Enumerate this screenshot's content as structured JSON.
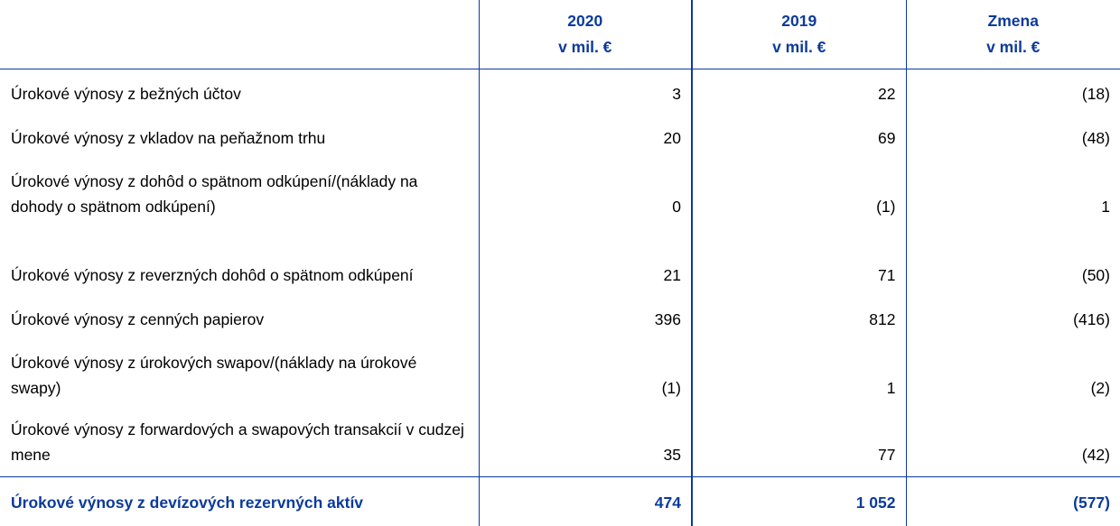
{
  "header": {
    "columns": [
      {
        "line1": "",
        "line2": ""
      },
      {
        "line1": "2020",
        "line2": "v mil. €"
      },
      {
        "line1": "2019",
        "line2": "v mil. €"
      },
      {
        "line1": "Zmena",
        "line2": "v mil. €"
      }
    ]
  },
  "rows": [
    {
      "label": "Úrokové výnosy z bežných účtov",
      "y2020": "3",
      "y2019": "22",
      "change": "(18)"
    },
    {
      "label": "Úrokové výnosy z vkladov na peňažnom trhu",
      "y2020": "20",
      "y2019": "69",
      "change": "(48)"
    },
    {
      "label": "Úrokové výnosy z dohôd o spätnom odkúpení/(náklady na dohody o spätnom odkúpení)",
      "y2020": "0",
      "y2019": "(1)",
      "change": "1"
    },
    {
      "label": "Úrokové výnosy z reverzných dohôd o spätnom odkúpení",
      "y2020": "21",
      "y2019": "71",
      "change": "(50)"
    },
    {
      "label": "Úrokové výnosy z cenných papierov",
      "y2020": "396",
      "y2019": "812",
      "change": "(416)"
    },
    {
      "label": "Úrokové výnosy z úrokových swapov/(náklady na úrokové swapy)",
      "y2020": "(1)",
      "y2019": "1",
      "change": "(2)"
    },
    {
      "label": "Úrokové výnosy z forwardových a swapových transakcií v cudzej mene",
      "y2020": "35",
      "y2019": "77",
      "change": "(42)"
    }
  ],
  "total": {
    "label": "Úrokové výnosy z devízových rezervných aktív",
    "y2020": "474",
    "y2019": "1 052",
    "change": "(577)"
  },
  "colors": {
    "accent": "#0b3a9c"
  }
}
